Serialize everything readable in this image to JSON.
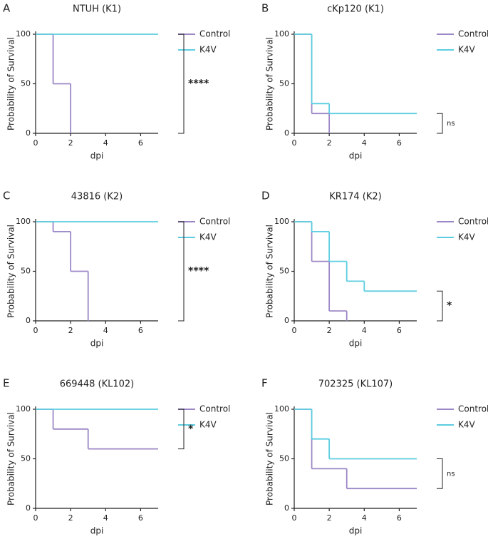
{
  "chart_data": [
    {
      "type": "step",
      "panel": "A",
      "title": "NTUH (K1)",
      "xlabel": "dpi",
      "ylabel": "Probability of Survival",
      "xlim": [
        0,
        7
      ],
      "ylim": [
        0,
        100
      ],
      "xticks": [
        0,
        2,
        4,
        6
      ],
      "yticks": [
        0,
        50,
        100
      ],
      "significance": "****",
      "series": [
        {
          "name": "Control",
          "color": "#9b87c6",
          "x": [
            0,
            1,
            2
          ],
          "values": [
            100,
            50,
            0
          ]
        },
        {
          "name": "K4V",
          "color": "#5ccde0",
          "x": [
            0,
            7
          ],
          "values": [
            100,
            100
          ]
        }
      ]
    },
    {
      "type": "step",
      "panel": "B",
      "title": "cKp120 (K1)",
      "xlabel": "dpi",
      "ylabel": "Probability of Survival",
      "xlim": [
        0,
        7
      ],
      "ylim": [
        0,
        100
      ],
      "xticks": [
        0,
        2,
        4,
        6
      ],
      "yticks": [
        0,
        50,
        100
      ],
      "significance": "ns",
      "series": [
        {
          "name": "Control",
          "color": "#9b87c6",
          "x": [
            0,
            1,
            2
          ],
          "values": [
            100,
            20,
            0
          ]
        },
        {
          "name": "K4V",
          "color": "#5ccde0",
          "x": [
            0,
            1,
            2,
            7
          ],
          "values": [
            100,
            30,
            20,
            20
          ]
        }
      ]
    },
    {
      "type": "step",
      "panel": "C",
      "title": "43816 (K2)",
      "xlabel": "dpi",
      "ylabel": "Probability of Survival",
      "xlim": [
        0,
        7
      ],
      "ylim": [
        0,
        100
      ],
      "xticks": [
        0,
        2,
        4,
        6
      ],
      "yticks": [
        0,
        50,
        100
      ],
      "significance": "****",
      "series": [
        {
          "name": "Control",
          "color": "#9b87c6",
          "x": [
            0,
            1,
            2,
            3
          ],
          "values": [
            100,
            90,
            50,
            0
          ]
        },
        {
          "name": "K4V",
          "color": "#5ccde0",
          "x": [
            0,
            7
          ],
          "values": [
            100,
            100
          ]
        }
      ]
    },
    {
      "type": "step",
      "panel": "D",
      "title": "KR174 (K2)",
      "xlabel": "dpi",
      "ylabel": "Probability of Survival",
      "xlim": [
        0,
        7
      ],
      "ylim": [
        0,
        100
      ],
      "xticks": [
        0,
        2,
        4,
        6
      ],
      "yticks": [
        0,
        50,
        100
      ],
      "significance": "*",
      "series": [
        {
          "name": "Control",
          "color": "#9b87c6",
          "x": [
            0,
            1,
            2,
            3
          ],
          "values": [
            100,
            60,
            10,
            0
          ]
        },
        {
          "name": "K4V",
          "color": "#5ccde0",
          "x": [
            0,
            1,
            2,
            3,
            4,
            7
          ],
          "values": [
            100,
            90,
            60,
            40,
            30,
            30
          ]
        }
      ]
    },
    {
      "type": "step",
      "panel": "E",
      "title": "669448 (KL102)",
      "xlabel": "dpi",
      "ylabel": "Probability of Survival",
      "xlim": [
        0,
        7
      ],
      "ylim": [
        0,
        100
      ],
      "xticks": [
        0,
        2,
        4,
        6
      ],
      "yticks": [
        0,
        50,
        100
      ],
      "significance": "*",
      "series": [
        {
          "name": "Control",
          "color": "#9b87c6",
          "x": [
            0,
            1,
            3,
            7
          ],
          "values": [
            100,
            80,
            60,
            60
          ]
        },
        {
          "name": "K4V",
          "color": "#5ccde0",
          "x": [
            0,
            7
          ],
          "values": [
            100,
            100
          ]
        }
      ]
    },
    {
      "type": "step",
      "panel": "F",
      "title": "702325 (KL107)",
      "xlabel": "dpi",
      "ylabel": "Probability of Survival",
      "xlim": [
        0,
        7
      ],
      "ylim": [
        0,
        100
      ],
      "xticks": [
        0,
        2,
        4,
        6
      ],
      "yticks": [
        0,
        50,
        100
      ],
      "significance": "ns",
      "series": [
        {
          "name": "Control",
          "color": "#9b87c6",
          "x": [
            0,
            1,
            3,
            7
          ],
          "values": [
            100,
            40,
            20,
            20
          ]
        },
        {
          "name": "K4V",
          "color": "#5ccde0",
          "x": [
            0,
            1,
            2,
            7
          ],
          "values": [
            100,
            70,
            50,
            50
          ]
        }
      ]
    }
  ]
}
